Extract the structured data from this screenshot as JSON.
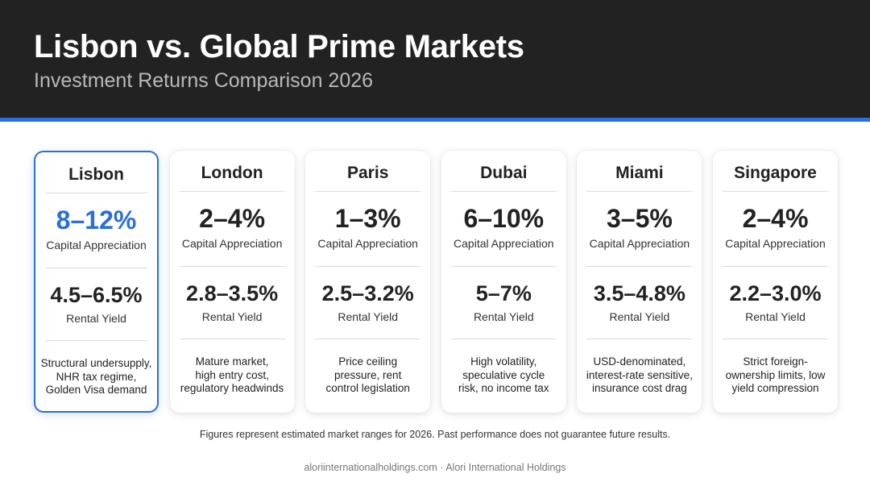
{
  "header": {
    "title": "Lisbon vs. Global Prime Markets",
    "subtitle": "Investment Returns Comparison 2026"
  },
  "colors": {
    "accent": "#2a6fdb",
    "header_bg": "#222222"
  },
  "cards": [
    {
      "city": "Lisbon",
      "highlighted": true,
      "capital_appreciation": "8–12%",
      "capital_appreciation_label": "Capital Appreciation",
      "rental_yield": "4.5–6.5%",
      "rental_yield_label": "Rental Yield",
      "note": "Structural undersupply,\nNHR tax regime,\nGolden Visa demand"
    },
    {
      "city": "London",
      "capital_appreciation": "2–4%",
      "capital_appreciation_label": "Capital Appreciation",
      "rental_yield": "2.8–3.5%",
      "rental_yield_label": "Rental Yield",
      "note": "Mature market,\nhigh entry cost,\nregulatory headwinds"
    },
    {
      "city": "Paris",
      "capital_appreciation": "1–3%",
      "capital_appreciation_label": "Capital Appreciation",
      "rental_yield": "2.5–3.2%",
      "rental_yield_label": "Rental Yield",
      "note": "Price ceiling\npressure, rent\ncontrol legislation"
    },
    {
      "city": "Dubai",
      "capital_appreciation": "6–10%",
      "capital_appreciation_label": "Capital Appreciation",
      "rental_yield": "5–7%",
      "rental_yield_label": "Rental Yield",
      "note": "High volatility,\nspeculative cycle\nrisk, no income tax"
    },
    {
      "city": "Miami",
      "capital_appreciation": "3–5%",
      "capital_appreciation_label": "Capital Appreciation",
      "rental_yield": "3.5–4.8%",
      "rental_yield_label": "Rental Yield",
      "note": "USD-denominated,\ninterest-rate sensitive,\ninsurance cost drag"
    },
    {
      "city": "Singapore",
      "capital_appreciation": "2–4%",
      "capital_appreciation_label": "Capital Appreciation",
      "rental_yield": "2.2–3.0%",
      "rental_yield_label": "Rental Yield",
      "note": "Strict foreign-\nownership limits, low\nyield compression"
    }
  ],
  "disclaimer": "Figures represent estimated market ranges for 2026. Past performance does not guarantee future results.",
  "footer": "aloriinternationalholdings.com · Alori International Holdings"
}
